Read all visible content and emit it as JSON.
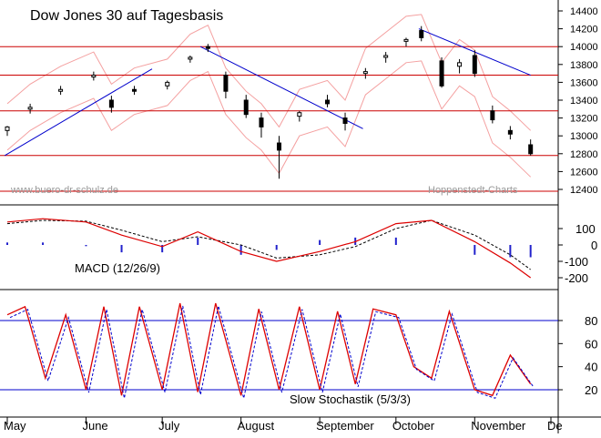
{
  "chart_data": [
    {
      "type": "candlestick",
      "title": "Dow Jones 30 auf Tagesbasis",
      "annotations": {
        "left": "www.buero-dr-schulz.de",
        "right": "Hoppenstedt-Charts"
      },
      "ylim": [
        12400,
        14400
      ],
      "y_ticks": [
        "12400",
        "12600",
        "12800",
        "13000",
        "13200",
        "13400",
        "13600",
        "13800",
        "14000",
        "14200",
        "14400"
      ],
      "horizontal_levels": [
        14000,
        13680,
        13280,
        12780
      ],
      "trendlines": [
        {
          "from": [
            "Apr 30",
            12780
          ],
          "to": [
            "Jun 27",
            13750
          ]
        },
        {
          "from": [
            "Jul 16",
            14000
          ],
          "to": [
            "Sep 18",
            13080
          ]
        },
        {
          "from": [
            "Oct 10",
            14200
          ],
          "to": [
            "Nov 23",
            13680
          ]
        }
      ],
      "series": [
        {
          "name": "",
          "ohlc_sample": [
            [
              "May 1",
              13060,
              13110,
              13000,
              13100
            ],
            [
              "May 10",
              13300,
              13360,
              13250,
              13320
            ],
            [
              "May 22",
              13510,
              13560,
              13460,
              13520
            ],
            [
              "Jun 4",
              13680,
              13720,
              13620,
              13680
            ],
            [
              "Jun 11",
              13400,
              13450,
              13260,
              13320
            ],
            [
              "Jun 20",
              13520,
              13560,
              13460,
              13500
            ],
            [
              "Jul 3",
              13560,
              13620,
              13520,
              13600
            ],
            [
              "Jul 12",
              13860,
              13900,
              13820,
              13880
            ],
            [
              "Jul 19",
              14000,
              14030,
              13940,
              13980
            ],
            [
              "Jul 26",
              13680,
              13720,
              13420,
              13500
            ],
            [
              "Aug 3",
              13400,
              13460,
              13200,
              13240
            ],
            [
              "Aug 9",
              13200,
              13260,
              12980,
              13100
            ],
            [
              "Aug 16",
              12920,
              13000,
              12520,
              12840
            ],
            [
              "Aug 24",
              13220,
              13280,
              13160,
              13260
            ],
            [
              "Sep 4",
              13400,
              13460,
              13320,
              13360
            ],
            [
              "Sep 11",
              13200,
              13260,
              13060,
              13140
            ],
            [
              "Sep 19",
              13700,
              13760,
              13640,
              13720
            ],
            [
              "Sep 27",
              13880,
              13940,
              13820,
              13900
            ],
            [
              "Oct 5",
              14060,
              14100,
              14000,
              14080
            ],
            [
              "Oct 11",
              14180,
              14230,
              14060,
              14100
            ],
            [
              "Oct 19",
              13840,
              13880,
              13540,
              13560
            ],
            [
              "Oct 26",
              13780,
              13860,
              13700,
              13820
            ],
            [
              "Nov 1",
              13900,
              13960,
              13660,
              13700
            ],
            [
              "Nov 8",
              13280,
              13340,
              13140,
              13180
            ],
            [
              "Nov 15",
              13060,
              13110,
              12960,
              13020
            ],
            [
              "Nov 23",
              12900,
              12960,
              12780,
              12800
            ]
          ]
        }
      ],
      "bollinger_bands": true,
      "grid": false
    },
    {
      "type": "line",
      "label": "MACD (12/26/9)",
      "ylim": [
        -250,
        200
      ],
      "y_ticks": [
        "100",
        "0",
        "-100",
        "-200"
      ],
      "series": [
        {
          "name": "",
          "x": [
            "May 1",
            "May 15",
            "Jun 1",
            "Jun 15",
            "Jul 1",
            "Jul 15",
            "Aug 1",
            "Aug 15",
            "Sep 1",
            "Sep 15",
            "Oct 1",
            "Oct 15",
            "Nov 1",
            "Nov 15",
            "Nov 23"
          ],
          "values": [
            140,
            160,
            140,
            60,
            -10,
            80,
            -40,
            -100,
            -40,
            20,
            130,
            150,
            20,
            -110,
            -200
          ]
        },
        {
          "name": "",
          "x": [
            "May 1",
            "May 15",
            "Jun 1",
            "Jun 15",
            "Jul 1",
            "Jul 15",
            "Aug 1",
            "Aug 15",
            "Sep 1",
            "Sep 15",
            "Oct 1",
            "Oct 15",
            "Nov 1",
            "Nov 15",
            "Nov 23"
          ],
          "values": [
            130,
            150,
            145,
            90,
            20,
            50,
            0,
            -80,
            -60,
            -10,
            100,
            150,
            60,
            -60,
            -150
          ]
        }
      ],
      "histogram": true
    },
    {
      "type": "line",
      "label": "Slow Stochastik (5/3/3)",
      "ylim": [
        0,
        100
      ],
      "y_ticks": [
        "80",
        "60",
        "40",
        "20"
      ],
      "levels": [
        80,
        20
      ],
      "series": [
        {
          "name": "",
          "x": [
            "May 1",
            "May 8",
            "May 16",
            "May 24",
            "Jun 1",
            "Jun 8",
            "Jun 15",
            "Jun 22",
            "Jul 1",
            "Jul 8",
            "Jul 15",
            "Jul 22",
            "Aug 1",
            "Aug 8",
            "Aug 16",
            "Aug 24",
            "Sep 1",
            "Sep 8",
            "Sep 15",
            "Sep 22",
            "Oct 1",
            "Oct 8",
            "Oct 15",
            "Oct 22",
            "Nov 1",
            "Nov 8",
            "Nov 15",
            "Nov 23"
          ],
          "values": [
            85,
            92,
            30,
            85,
            20,
            92,
            15,
            92,
            20,
            95,
            18,
            95,
            15,
            90,
            20,
            92,
            20,
            88,
            25,
            90,
            85,
            40,
            30,
            88,
            20,
            15,
            50,
            25
          ]
        }
      ]
    }
  ],
  "x_axis": {
    "labels": [
      "May",
      "June",
      "July",
      "August",
      "September",
      "October",
      "November",
      "De"
    ]
  }
}
